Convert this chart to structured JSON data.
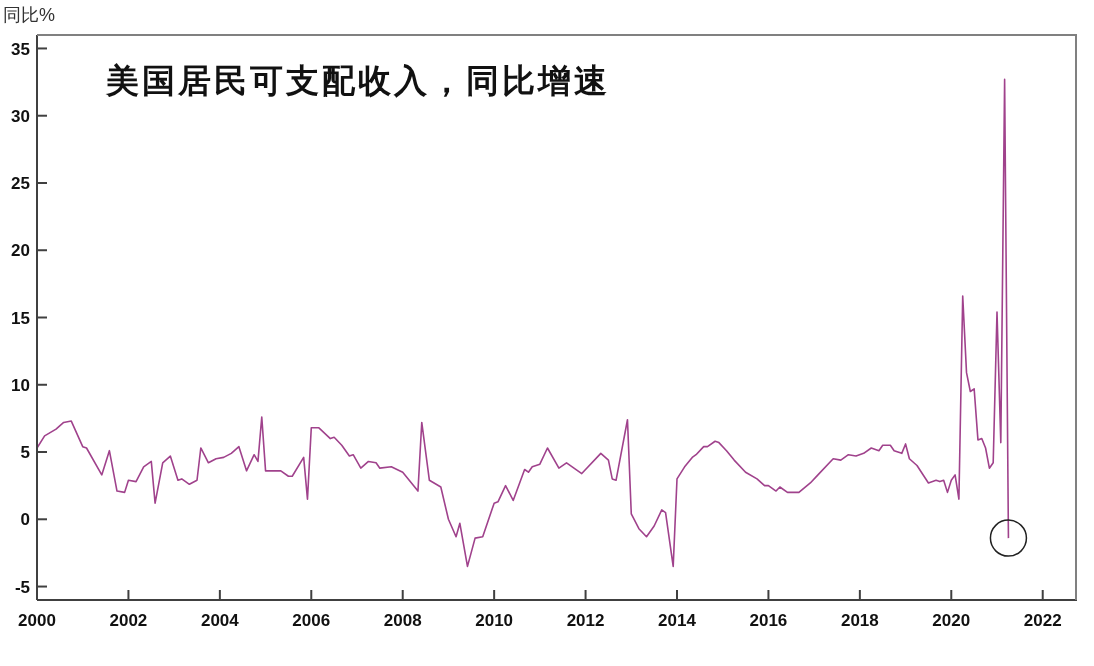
{
  "chart_data": {
    "type": "line",
    "title": "美国居民可支配收入，同比增速",
    "ylabel": "同比%",
    "x": [
      "2000-01",
      "2000-03",
      "2000-06",
      "2000-08",
      "2000-10",
      "2001-01",
      "2001-02",
      "2001-06",
      "2001-08",
      "2001-10",
      "2001-12",
      "2002-01",
      "2002-03",
      "2002-05",
      "2002-07",
      "2002-08",
      "2002-10",
      "2002-12",
      "2003-02",
      "2003-03",
      "2003-05",
      "2003-07",
      "2003-08",
      "2003-10",
      "2003-12",
      "2004-02",
      "2004-04",
      "2004-06",
      "2004-08",
      "2004-10",
      "2004-11",
      "2004-12",
      "2005-01",
      "2005-05",
      "2005-07",
      "2005-08",
      "2005-11",
      "2005-12",
      "2006-01",
      "2006-03",
      "2006-06",
      "2006-07",
      "2006-09",
      "2006-11",
      "2006-12",
      "2007-02",
      "2007-04",
      "2007-06",
      "2007-07",
      "2007-10",
      "2008-01",
      "2008-05",
      "2008-06",
      "2008-08",
      "2008-11",
      "2009-01",
      "2009-03",
      "2009-04",
      "2009-06",
      "2009-08",
      "2009-10",
      "2010-01",
      "2010-02",
      "2010-04",
      "2010-06",
      "2010-09",
      "2010-10",
      "2010-11",
      "2011-01",
      "2011-03",
      "2011-06",
      "2011-08",
      "2011-12",
      "2012-05",
      "2012-07",
      "2012-08",
      "2012-09",
      "2012-12",
      "2013-01",
      "2013-03",
      "2013-05",
      "2013-07",
      "2013-09",
      "2013-10",
      "2013-12",
      "2014-01",
      "2014-03",
      "2014-05",
      "2014-06",
      "2014-08",
      "2014-09",
      "2014-11",
      "2014-12",
      "2015-02",
      "2015-04",
      "2015-07",
      "2015-10",
      "2015-12",
      "2016-01",
      "2016-03",
      "2016-04",
      "2016-06",
      "2016-09",
      "2016-12",
      "2017-02",
      "2017-06",
      "2017-08",
      "2017-10",
      "2017-12",
      "2018-02",
      "2018-04",
      "2018-06",
      "2018-07",
      "2018-09",
      "2018-10",
      "2018-12",
      "2019-01",
      "2019-02",
      "2019-04",
      "2019-07",
      "2019-09",
      "2019-10",
      "2019-11",
      "2019-12",
      "2020-01",
      "2020-02",
      "2020-03",
      "2020-04",
      "2020-05",
      "2020-06",
      "2020-07",
      "2020-08",
      "2020-09",
      "2020-10",
      "2020-11",
      "2020-12",
      "2021-01",
      "2021-02",
      "2021-03",
      "2021-04"
    ],
    "series": [
      {
        "color": "#a0428c",
        "values": [
          5.3,
          6.2,
          6.7,
          7.2,
          7.3,
          5.4,
          5.3,
          3.3,
          5.1,
          2.1,
          2.0,
          2.9,
          2.8,
          3.9,
          4.3,
          1.2,
          4.2,
          4.7,
          2.9,
          3.0,
          2.6,
          2.9,
          5.3,
          4.2,
          4.5,
          4.6,
          4.9,
          5.4,
          3.6,
          4.8,
          4.3,
          7.6,
          3.6,
          3.6,
          3.2,
          3.2,
          4.6,
          1.5,
          6.8,
          6.8,
          6.0,
          6.1,
          5.5,
          4.7,
          4.8,
          3.8,
          4.3,
          4.2,
          3.8,
          3.9,
          3.5,
          2.1,
          7.2,
          2.9,
          2.4,
          0.0,
          -1.3,
          -0.3,
          -3.5,
          -1.4,
          -1.3,
          1.2,
          1.3,
          2.5,
          1.4,
          3.7,
          3.5,
          3.9,
          4.1,
          5.3,
          3.8,
          4.2,
          3.4,
          4.9,
          4.4,
          3.0,
          2.9,
          7.4,
          0.4,
          -0.7,
          -1.3,
          -0.5,
          0.7,
          0.5,
          -3.5,
          3.0,
          3.9,
          4.6,
          4.8,
          5.4,
          5.4,
          5.8,
          5.7,
          5.1,
          4.4,
          3.5,
          3.0,
          2.5,
          2.5,
          2.1,
          2.4,
          2.0,
          2.0,
          2.7,
          3.3,
          4.5,
          4.4,
          4.8,
          4.7,
          4.9,
          5.3,
          5.1,
          5.5,
          5.5,
          5.1,
          4.9,
          5.6,
          4.5,
          4.0,
          2.7,
          2.9,
          2.8,
          2.9,
          2.0,
          2.9,
          3.3,
          1.5,
          16.6,
          10.9,
          9.5,
          9.7,
          5.9,
          6.0,
          5.3,
          3.8,
          4.2,
          15.4,
          5.7,
          32.7,
          -1.4
        ]
      }
    ],
    "xlim": [
      "2000-01",
      "2022-10"
    ],
    "xticks": [
      "2000",
      "2002",
      "2004",
      "2006",
      "2008",
      "2010",
      "2012",
      "2014",
      "2016",
      "2018",
      "2020",
      "2022"
    ],
    "ylim": [
      -6,
      36
    ],
    "yticks": [
      -5,
      0,
      5,
      10,
      15,
      20,
      25,
      30,
      35
    ]
  }
}
